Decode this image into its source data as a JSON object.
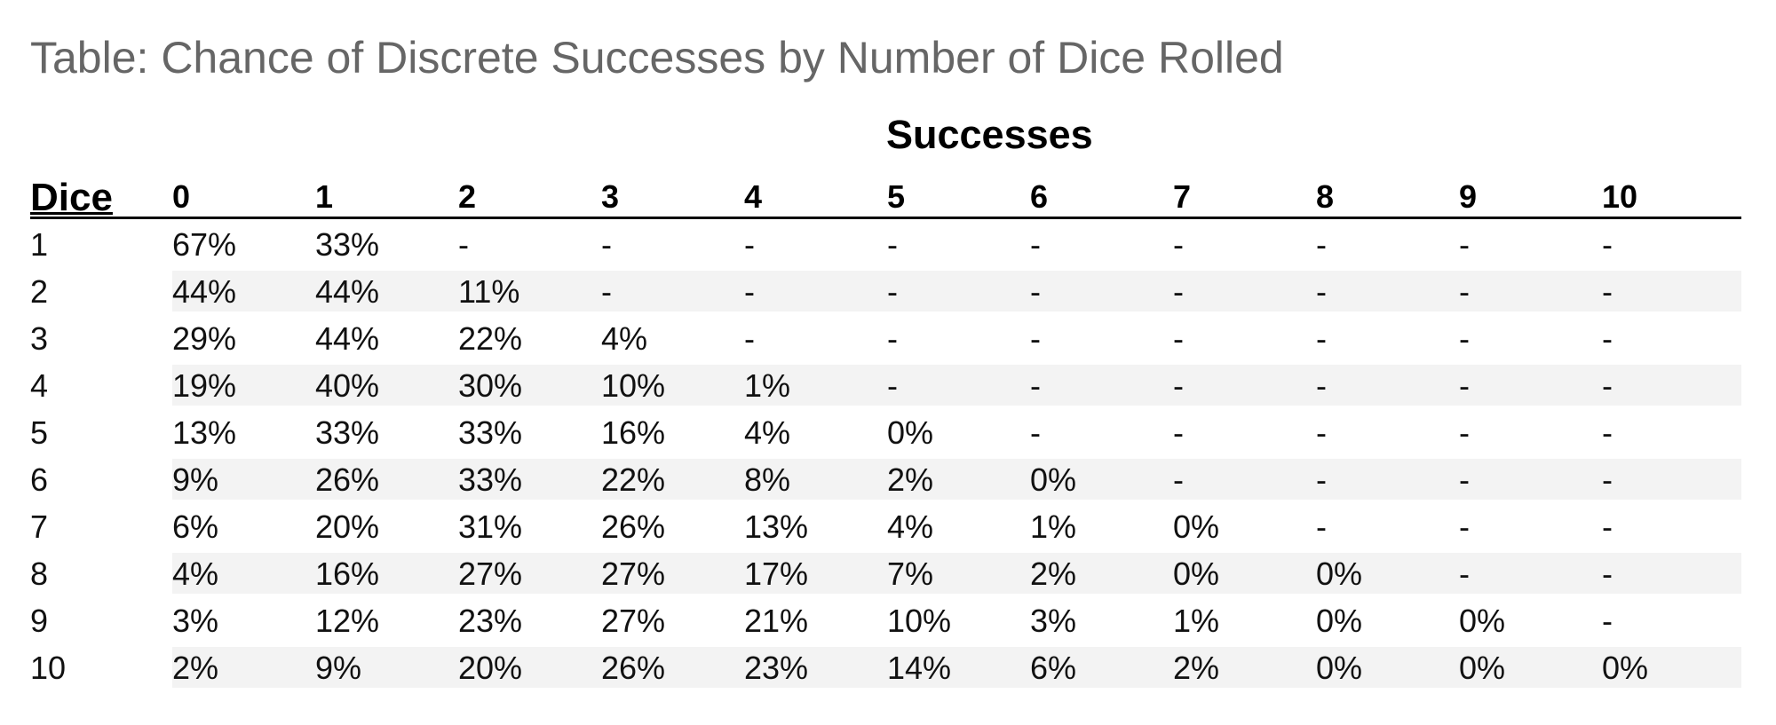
{
  "caption": "Table: Chance of Discrete Successes by Number of Dice Rolled",
  "group_header": "Successes",
  "dice_header": "Dice",
  "columns": [
    "0",
    "1",
    "2",
    "3",
    "4",
    "5",
    "6",
    "7",
    "8",
    "9",
    "10"
  ],
  "rows": [
    {
      "dice": "1",
      "values": [
        "67%",
        "33%",
        "-",
        "-",
        "-",
        "-",
        "-",
        "-",
        "-",
        "-",
        "-"
      ]
    },
    {
      "dice": "2",
      "values": [
        "44%",
        "44%",
        "11%",
        "-",
        "-",
        "-",
        "-",
        "-",
        "-",
        "-",
        "-"
      ]
    },
    {
      "dice": "3",
      "values": [
        "29%",
        "44%",
        "22%",
        "4%",
        "-",
        "-",
        "-",
        "-",
        "-",
        "-",
        "-"
      ]
    },
    {
      "dice": "4",
      "values": [
        "19%",
        "40%",
        "30%",
        "10%",
        "1%",
        "-",
        "-",
        "-",
        "-",
        "-",
        "-"
      ]
    },
    {
      "dice": "5",
      "values": [
        "13%",
        "33%",
        "33%",
        "16%",
        "4%",
        "0%",
        "-",
        "-",
        "-",
        "-",
        "-"
      ]
    },
    {
      "dice": "6",
      "values": [
        "9%",
        "26%",
        "33%",
        "22%",
        "8%",
        "2%",
        "0%",
        "-",
        "-",
        "-",
        "-"
      ]
    },
    {
      "dice": "7",
      "values": [
        "6%",
        "20%",
        "31%",
        "26%",
        "13%",
        "4%",
        "1%",
        "0%",
        "-",
        "-",
        "-"
      ]
    },
    {
      "dice": "8",
      "values": [
        "4%",
        "16%",
        "27%",
        "27%",
        "17%",
        "7%",
        "2%",
        "0%",
        "0%",
        "-",
        "-"
      ]
    },
    {
      "dice": "9",
      "values": [
        "3%",
        "12%",
        "23%",
        "27%",
        "21%",
        "10%",
        "3%",
        "1%",
        "0%",
        "0%",
        "-"
      ]
    },
    {
      "dice": "10",
      "values": [
        "2%",
        "9%",
        "20%",
        "26%",
        "23%",
        "14%",
        "6%",
        "2%",
        "0%",
        "0%",
        "0%"
      ]
    }
  ],
  "colors": {
    "caption": "#666666",
    "row_shade": "#f3f3f3",
    "rule": "#000000"
  }
}
